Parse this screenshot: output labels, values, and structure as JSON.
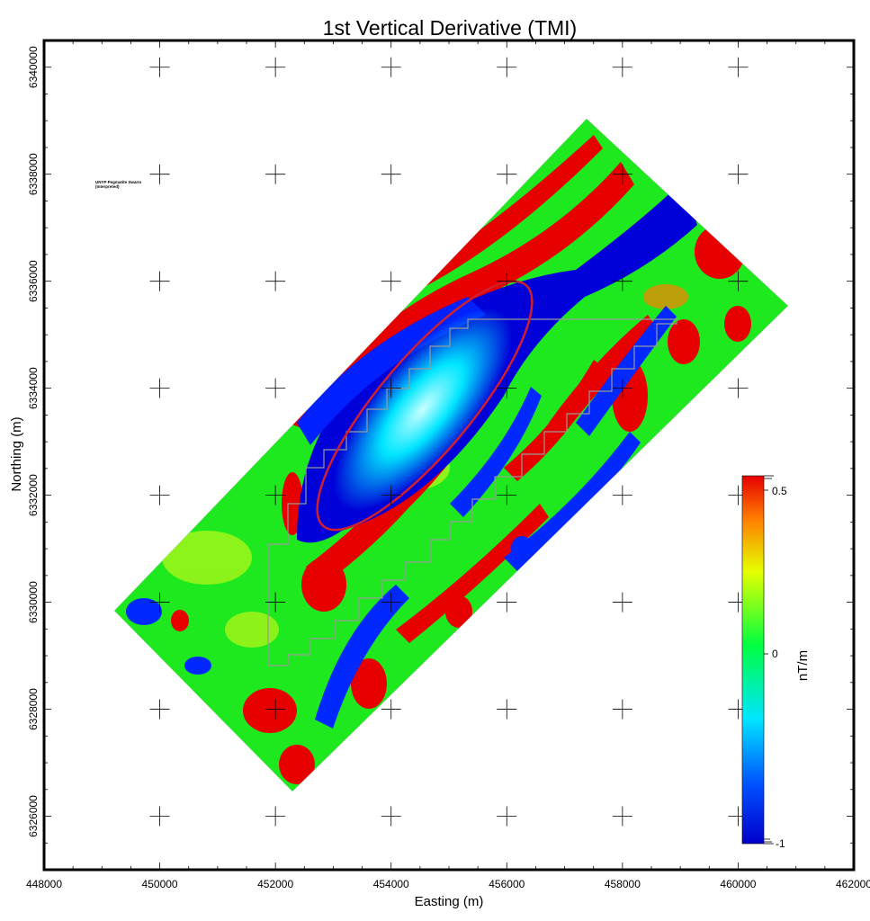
{
  "title": "1st Vertical Derivative (TMI)",
  "map_data": {
    "type": "geophysical-grid",
    "xlabel": "Easting (m)",
    "ylabel": "Northing (m)",
    "x_ticks": [
      "448000",
      "450000",
      "452000",
      "454000",
      "456000",
      "458000",
      "460000",
      "462000"
    ],
    "y_ticks": [
      "6340000",
      "6338000",
      "6336000",
      "6334000",
      "6332000",
      "6330000",
      "6328000",
      "6326000"
    ],
    "xlim": [
      448000,
      462000
    ],
    "ylim": [
      6325000,
      6340500
    ],
    "colorscale": [
      "#0000c8",
      "#0050ff",
      "#00e6ff",
      "#00ff40",
      "#e6ff00",
      "#ff8000",
      "#e60000"
    ],
    "colorbar": {
      "unit": "nT/m",
      "labels": [
        "0.5",
        "0",
        "-1"
      ],
      "range": [
        -1,
        0.55
      ]
    },
    "annotation_text": [
      "UNYP Pegmatite Swarm",
      "(Interpreted)"
    ],
    "ellipse_color": "#d02030"
  }
}
